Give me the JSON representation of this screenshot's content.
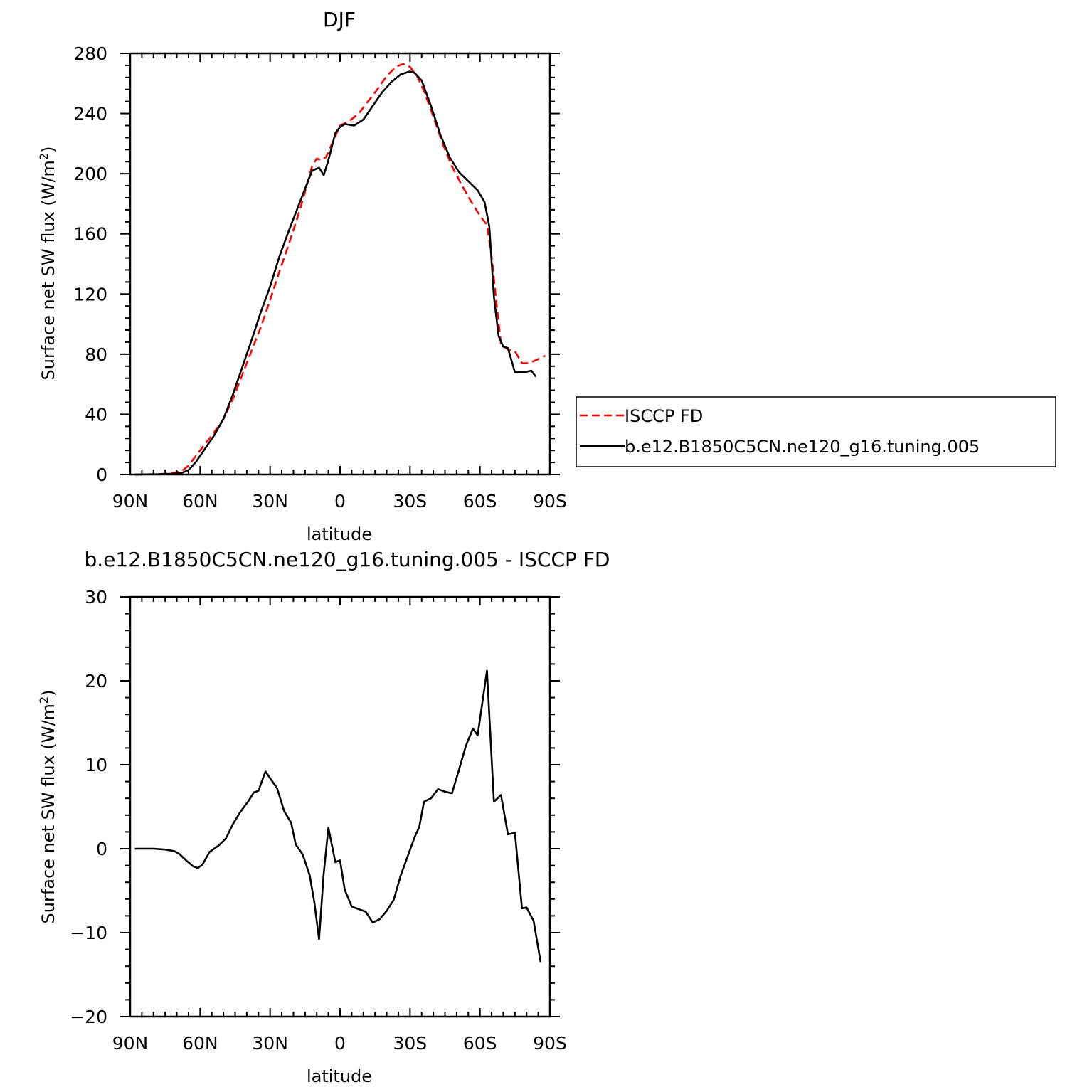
{
  "chart_data": [
    {
      "type": "line",
      "title": "DJF",
      "xlabel": "latitude",
      "ylabel": "Surface net SW flux (W/m",
      "ylabel_sup": "2",
      "ylabel_close": ")",
      "xlim": [
        90,
        -90
      ],
      "ylim": [
        0,
        280
      ],
      "x_ticks": [
        {
          "v": 90,
          "label": "90N"
        },
        {
          "v": 60,
          "label": "60N"
        },
        {
          "v": 30,
          "label": "30N"
        },
        {
          "v": 0,
          "label": "0"
        },
        {
          "v": -30,
          "label": "30S"
        },
        {
          "v": -60,
          "label": "60S"
        },
        {
          "v": -90,
          "label": "90S"
        }
      ],
      "y_ticks": [
        0,
        40,
        80,
        120,
        160,
        200,
        240,
        280
      ],
      "legend_position": "right",
      "series": [
        {
          "name": "ISCCP FD",
          "color": "#ff0000",
          "style": "dashed",
          "points": [
            [
              88,
              0
            ],
            [
              78,
              0.2
            ],
            [
              72,
              1
            ],
            [
              68,
              2
            ],
            [
              65,
              6
            ],
            [
              62,
              12
            ],
            [
              58,
              20
            ],
            [
              54,
              28
            ],
            [
              50,
              37
            ],
            [
              46,
              50
            ],
            [
              42,
              66
            ],
            [
              38,
              82
            ],
            [
              34,
              98
            ],
            [
              30,
              116
            ],
            [
              26,
              135
            ],
            [
              22,
              153
            ],
            [
              18,
              172
            ],
            [
              15,
              188
            ],
            [
              12,
              205
            ],
            [
              10,
              210
            ],
            [
              8,
              209
            ],
            [
              6,
              211
            ],
            [
              2,
              225
            ],
            [
              0,
              232
            ],
            [
              -4,
              235
            ],
            [
              -8,
              240
            ],
            [
              -12,
              248
            ],
            [
              -16,
              256
            ],
            [
              -20,
              265
            ],
            [
              -24,
              271
            ],
            [
              -27,
              273
            ],
            [
              -30,
              271
            ],
            [
              -33,
              265
            ],
            [
              -36,
              255
            ],
            [
              -40,
              238
            ],
            [
              -44,
              220
            ],
            [
              -48,
              205
            ],
            [
              -52,
              193
            ],
            [
              -56,
              182
            ],
            [
              -60,
              172
            ],
            [
              -63,
              166
            ],
            [
              -65,
              145
            ],
            [
              -67,
              115
            ],
            [
              -69,
              87
            ],
            [
              -72,
              83
            ],
            [
              -75,
              82
            ],
            [
              -78,
              74
            ],
            [
              -81,
              74
            ],
            [
              -84,
              76
            ],
            [
              -88,
              79
            ]
          ]
        },
        {
          "name": "b.e12.B1850C5CN.ne120_g16.tuning.005",
          "color": "#000000",
          "style": "solid",
          "points": [
            [
              88,
              0
            ],
            [
              78,
              0.2
            ],
            [
              72,
              0.5
            ],
            [
              68,
              1
            ],
            [
              65,
              3
            ],
            [
              62,
              8
            ],
            [
              58,
              17
            ],
            [
              54,
              26
            ],
            [
              50,
              37
            ],
            [
              46,
              53
            ],
            [
              42,
              71
            ],
            [
              38,
              89
            ],
            [
              34,
              108
            ],
            [
              30,
              125
            ],
            [
              26,
              145
            ],
            [
              22,
              162
            ],
            [
              18,
              178
            ],
            [
              15,
              190
            ],
            [
              12,
              202
            ],
            [
              9,
              204
            ],
            [
              7,
              199
            ],
            [
              5,
              209
            ],
            [
              2,
              227
            ],
            [
              0,
              231
            ],
            [
              -2,
              233
            ],
            [
              -6,
              232
            ],
            [
              -10,
              236
            ],
            [
              -14,
              245
            ],
            [
              -18,
              254
            ],
            [
              -22,
              261
            ],
            [
              -26,
              266
            ],
            [
              -30,
              268
            ],
            [
              -32,
              267
            ],
            [
              -35,
              262
            ],
            [
              -39,
              245
            ],
            [
              -43,
              226
            ],
            [
              -47,
              211
            ],
            [
              -51,
              201
            ],
            [
              -55,
              195
            ],
            [
              -59,
              189
            ],
            [
              -62,
              181
            ],
            [
              -64,
              165
            ],
            [
              -66,
              118
            ],
            [
              -68,
              92
            ],
            [
              -70,
              85
            ],
            [
              -72,
              84
            ],
            [
              -75,
              68
            ],
            [
              -79,
              68
            ],
            [
              -82,
              69
            ],
            [
              -84,
              65
            ]
          ]
        }
      ]
    },
    {
      "type": "line",
      "title": "b.e12.B1850C5CN.ne120_g16.tuning.005 - ISCCP FD",
      "xlabel": "latitude",
      "ylabel": "Surface net SW flux (W/m",
      "ylabel_sup": "2",
      "ylabel_close": ")",
      "xlim": [
        90,
        -90
      ],
      "ylim": [
        -20,
        30
      ],
      "x_ticks": [
        {
          "v": 90,
          "label": "90N"
        },
        {
          "v": 60,
          "label": "60N"
        },
        {
          "v": 30,
          "label": "30N"
        },
        {
          "v": 0,
          "label": "0"
        },
        {
          "v": -30,
          "label": "30S"
        },
        {
          "v": -60,
          "label": "60S"
        },
        {
          "v": -90,
          "label": "90S"
        }
      ],
      "y_ticks": [
        -20,
        -10,
        0,
        10,
        20,
        30
      ],
      "series": [
        {
          "color": "#000000",
          "style": "solid",
          "points": [
            [
              88,
              0
            ],
            [
              80,
              0
            ],
            [
              75,
              -0.1
            ],
            [
              71,
              -0.3
            ],
            [
              69,
              -0.6
            ],
            [
              66,
              -1.4
            ],
            [
              63,
              -2.1
            ],
            [
              61,
              -2.3
            ],
            [
              59,
              -1.9
            ],
            [
              56,
              -0.4
            ],
            [
              52,
              0.4
            ],
            [
              49,
              1.2
            ],
            [
              46,
              2.9
            ],
            [
              43,
              4.3
            ],
            [
              39,
              5.8
            ],
            [
              37,
              6.7
            ],
            [
              35,
              6.9
            ],
            [
              32,
              9.2
            ],
            [
              29,
              8.0
            ],
            [
              27,
              7.2
            ],
            [
              24,
              4.5
            ],
            [
              21,
              3.1
            ],
            [
              19,
              0.5
            ],
            [
              16,
              -0.7
            ],
            [
              13,
              -3.2
            ],
            [
              11,
              -6.4
            ],
            [
              9,
              -10.8
            ],
            [
              7,
              -2.9
            ],
            [
              5,
              2.5
            ],
            [
              2,
              -1.6
            ],
            [
              0,
              -1.4
            ],
            [
              -2,
              -4.9
            ],
            [
              -5,
              -6.9
            ],
            [
              -8,
              -7.2
            ],
            [
              -11,
              -7.5
            ],
            [
              -14,
              -8.8
            ],
            [
              -17,
              -8.4
            ],
            [
              -20,
              -7.4
            ],
            [
              -23,
              -6.1
            ],
            [
              -26,
              -3.2
            ],
            [
              -29,
              -0.9
            ],
            [
              -32,
              1.4
            ],
            [
              -34,
              2.6
            ],
            [
              -36,
              5.6
            ],
            [
              -39,
              6.0
            ],
            [
              -42,
              7.1
            ],
            [
              -45,
              6.8
            ],
            [
              -48,
              6.6
            ],
            [
              -51,
              9.4
            ],
            [
              -54,
              12.3
            ],
            [
              -57,
              14.3
            ],
            [
              -59,
              13.5
            ],
            [
              -63,
              21.2
            ],
            [
              -66,
              5.6
            ],
            [
              -69,
              6.4
            ],
            [
              -72,
              1.7
            ],
            [
              -75,
              1.9
            ],
            [
              -78,
              -7.1
            ],
            [
              -80,
              -7.0
            ],
            [
              -83,
              -8.6
            ],
            [
              -86,
              -13.5
            ]
          ]
        }
      ]
    }
  ]
}
